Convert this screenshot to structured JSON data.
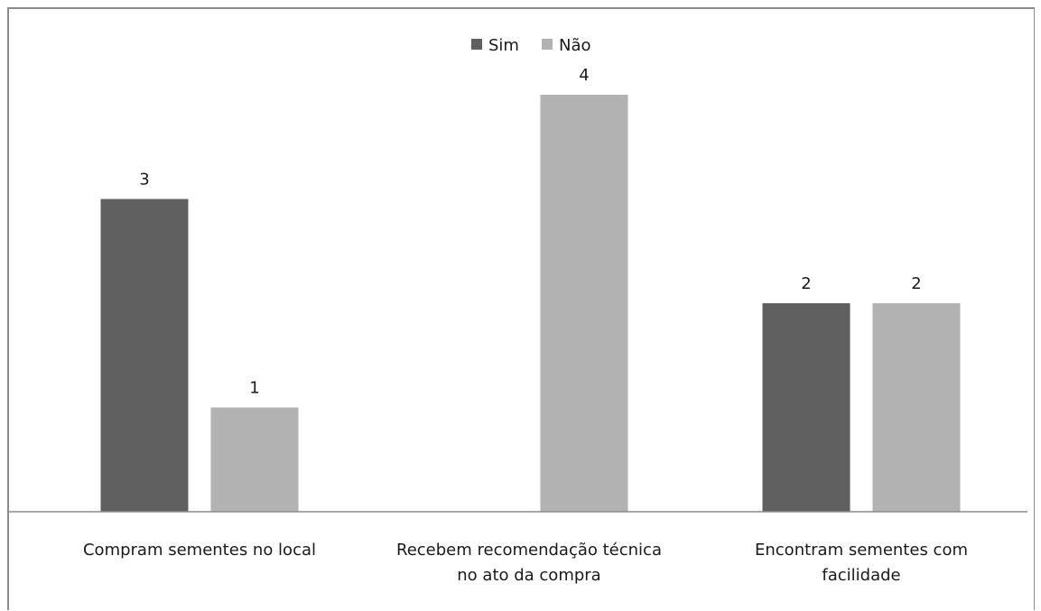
{
  "chart_data": {
    "type": "bar",
    "categories": [
      [
        "Compram sementes no local"
      ],
      [
        "Recebem recomendação técnica",
        "no ato da compra"
      ],
      [
        "Encontram sementes com",
        "facilidade"
      ]
    ],
    "series": [
      {
        "name": "Sim",
        "color": "#606060",
        "values": [
          3,
          0,
          2
        ]
      },
      {
        "name": "Não",
        "color": "#b2b2b2",
        "values": [
          1,
          4,
          2
        ]
      }
    ],
    "data_labels": [
      [
        "3",
        "",
        "2"
      ],
      [
        "1",
        "4",
        "2"
      ]
    ],
    "ylim": [
      0,
      4
    ],
    "grid": false,
    "legend_position": "top-center"
  }
}
